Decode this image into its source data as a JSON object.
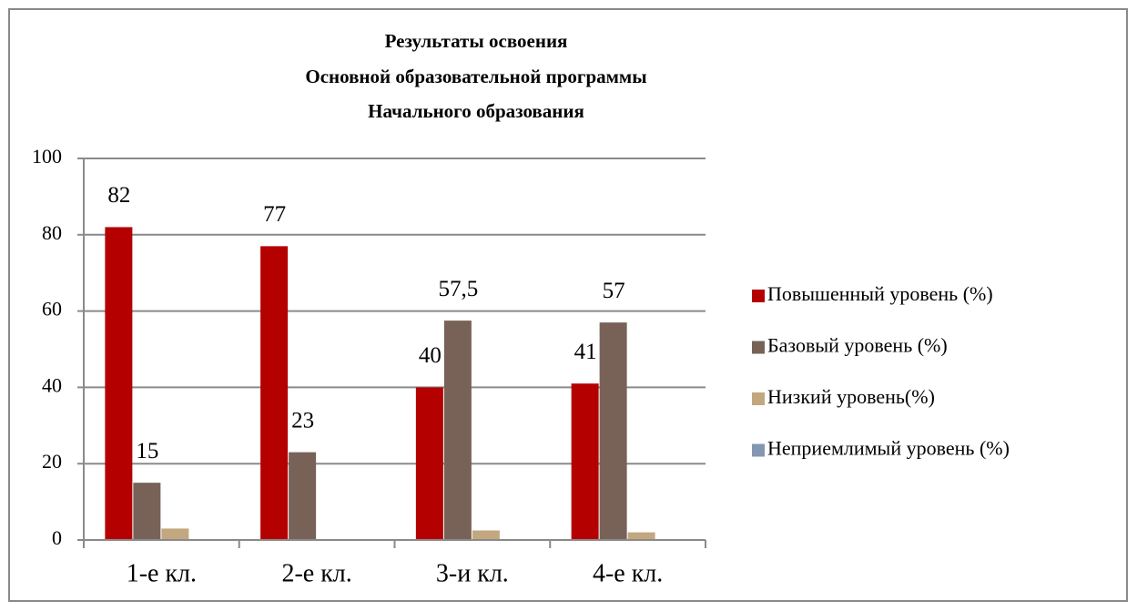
{
  "chart_data": {
    "type": "bar",
    "title": [
      "Результаты освоения",
      "Основной образовательной программы",
      "Начального образования"
    ],
    "categories": [
      "1-е кл.",
      "2-е кл.",
      "3-и кл.",
      "4-е кл."
    ],
    "series": [
      {
        "name": "Повышенный уровень (%)",
        "color": "#b50000",
        "values": [
          82,
          77,
          40,
          41
        ],
        "value_labels": [
          "82",
          "77",
          "40",
          "41"
        ]
      },
      {
        "name": "Базовый уровень (%)",
        "color": "#786258",
        "values": [
          15,
          23,
          57.5,
          57
        ],
        "value_labels": [
          "15",
          "23",
          "57,5",
          "57"
        ]
      },
      {
        "name": "Низкий уровень(%)",
        "color": "#c3a77f",
        "values": [
          3,
          0,
          2.5,
          2
        ]
      },
      {
        "name": "Неприемлимый уровень (%)",
        "color": "#8497b0",
        "values": [
          0,
          0,
          0,
          0
        ]
      }
    ],
    "ylim": [
      0,
      100
    ],
    "yticks": [
      0,
      20,
      40,
      60,
      80,
      100
    ],
    "grid": true,
    "legend": "right"
  }
}
